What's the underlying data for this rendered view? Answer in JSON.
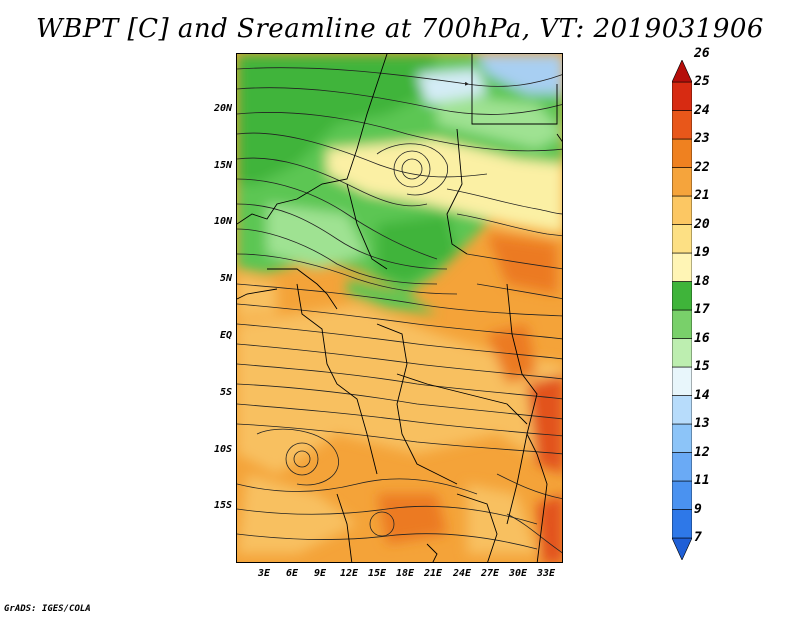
{
  "title": "WBPT [C] and Sreamline at 700hPa, VT: 2019031906",
  "footer": "GrADS: IGES/COLA",
  "latitude_labels": [
    "20N",
    "15N",
    "10N",
    "5N",
    "EQ",
    "5S",
    "10S",
    "15S"
  ],
  "longitude_labels": [
    "3E",
    "6E",
    "9E",
    "12E",
    "15E",
    "18E",
    "21E",
    "24E",
    "27E",
    "30E",
    "33E"
  ],
  "colorbar": {
    "labels": [
      "7",
      "9",
      "11",
      "12",
      "13",
      "14",
      "15",
      "16",
      "17",
      "18",
      "19",
      "20",
      "21",
      "22",
      "23",
      "24",
      "25",
      "26"
    ],
    "colors": [
      "#1f5fd6",
      "#2e78e8",
      "#4a92f0",
      "#6aaaf5",
      "#8cc4f8",
      "#b7dcfb",
      "#e8f6fb",
      "#bdeeb0",
      "#79d06a",
      "#3fb43a",
      "#fff5b5",
      "#fde084",
      "#fcc763",
      "#f5a43c",
      "#ef8120",
      "#e8571a",
      "#d72b12",
      "#b50e0a"
    ]
  },
  "colors": {
    "map_orange": "#f4a339",
    "map_light_orange": "#f8c060",
    "map_green": "#5cc653",
    "map_light_green": "#9fe292",
    "map_yellow": "#fbf0a4",
    "map_blue": "#a8cff2",
    "map_red": "#e2531a"
  }
}
